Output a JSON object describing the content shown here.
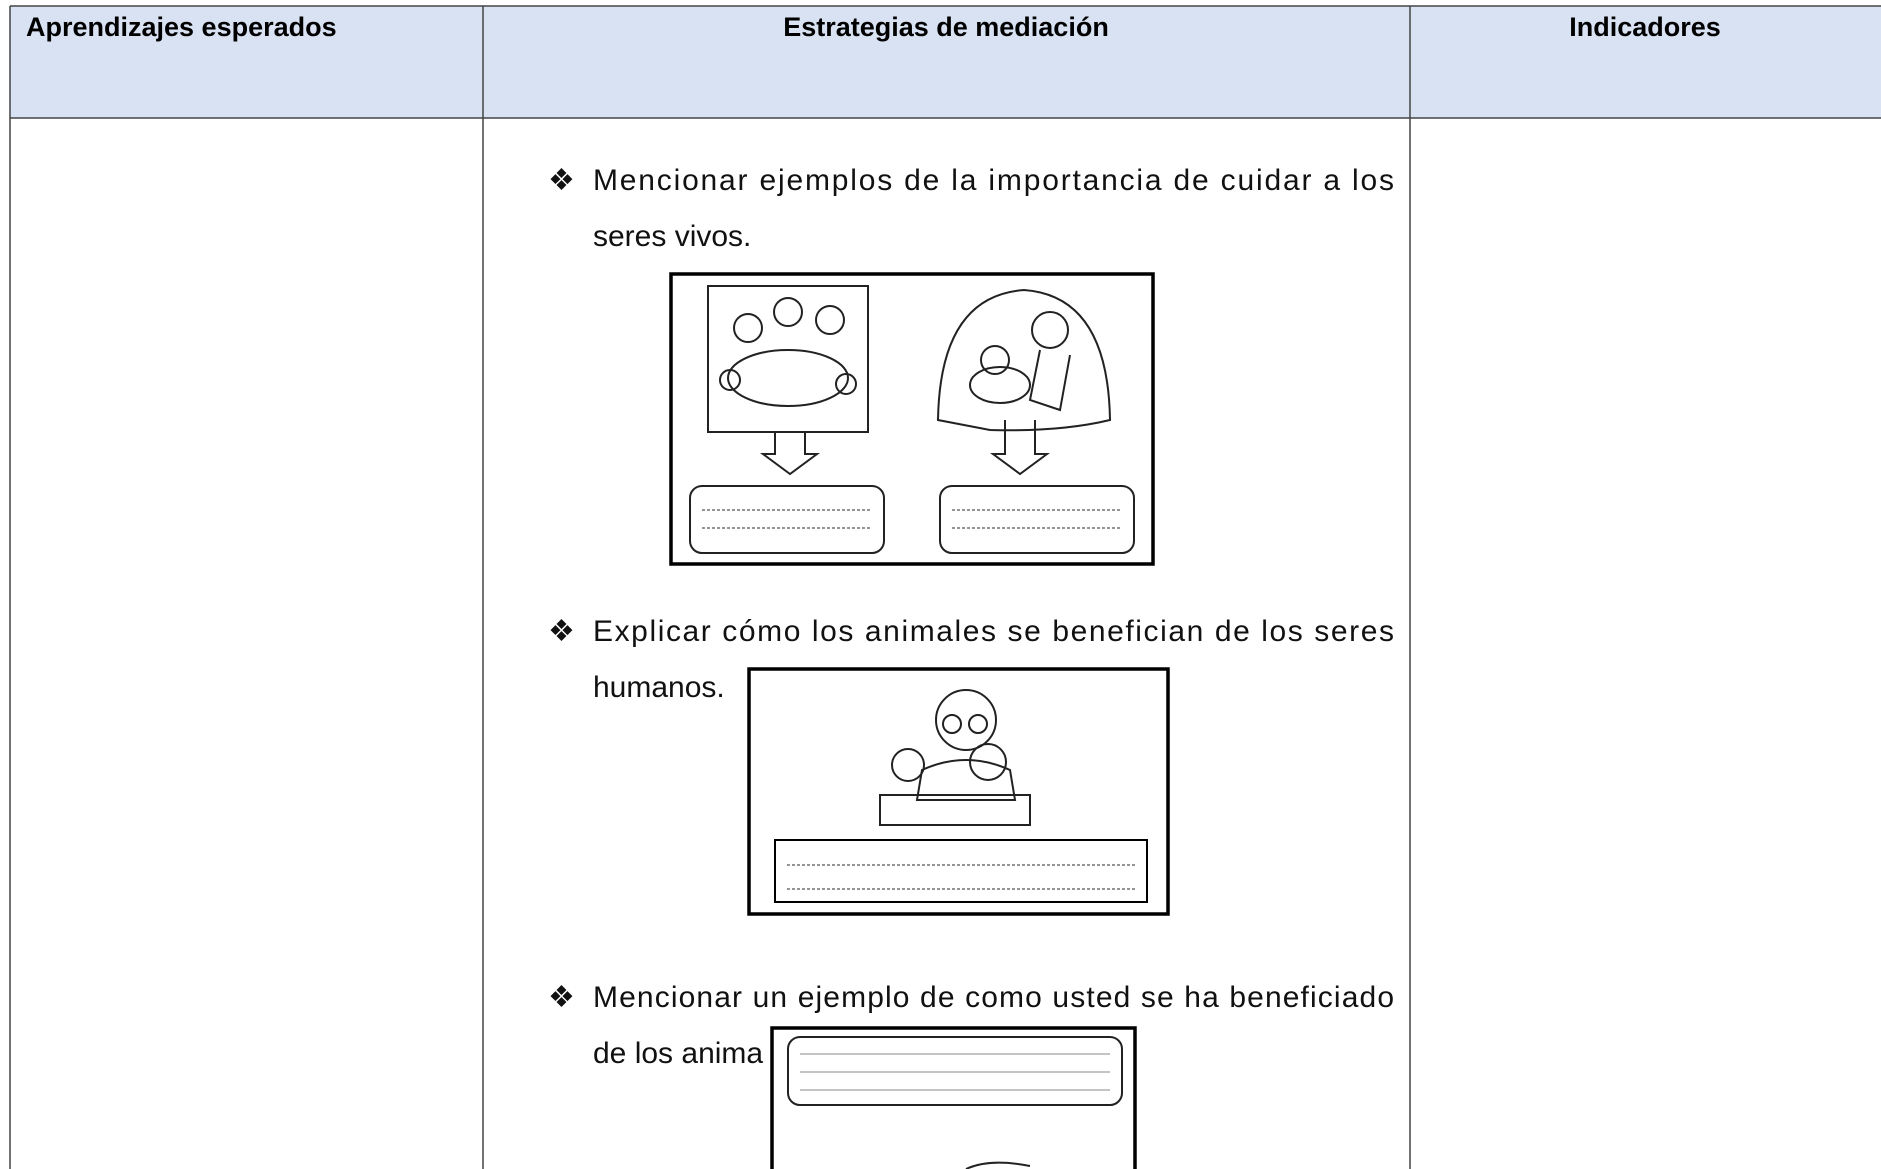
{
  "table": {
    "headers": [
      "Aprendizajes esperados",
      "Estrategias de mediación",
      "Indicadores"
    ]
  },
  "bullets": [
    {
      "symbol": "❖",
      "lines": [
        "Mencionar ejemplos de la importancia de cuidar a los",
        "seres vivos."
      ]
    },
    {
      "symbol": "❖",
      "lines": [
        "Explicar cómo los animales se benefician de los seres",
        "humanos."
      ]
    },
    {
      "symbol": "❖",
      "lines": [
        "Mencionar un ejemplo de como usted se ha beneficiado",
        "de los anima"
      ]
    }
  ]
}
